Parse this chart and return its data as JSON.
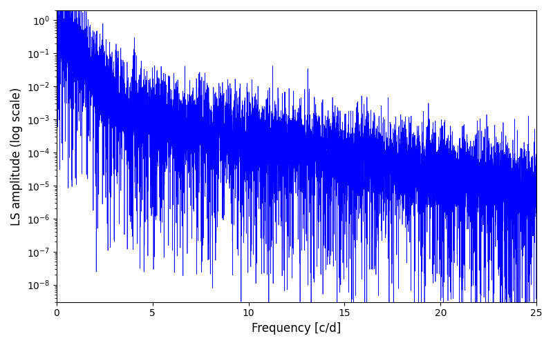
{
  "title": "",
  "xlabel": "Frequency [c/d]",
  "ylabel": "LS amplitude (log scale)",
  "xlim": [
    0,
    25
  ],
  "ylim_bottom": 3e-09,
  "ylim_top": 2.0,
  "line_color": "#0000FF",
  "line_width": 0.5,
  "background_color": "#ffffff",
  "figsize": [
    8.0,
    5.0
  ],
  "dpi": 100,
  "seed": 12345,
  "n_points": 8000,
  "freq_max": 25.0
}
